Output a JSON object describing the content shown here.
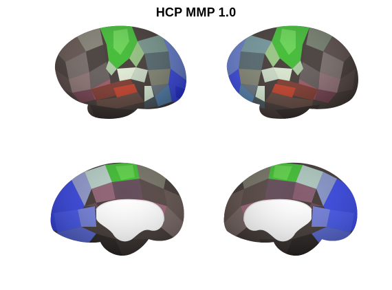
{
  "figure": {
    "title": "HCP MMP 1.0"
  },
  "views": [
    {
      "hemisphere": "left",
      "view": "lateral"
    },
    {
      "hemisphere": "right",
      "view": "lateral"
    },
    {
      "hemisphere": "left",
      "view": "medial"
    },
    {
      "hemisphere": "right",
      "view": "medial"
    }
  ],
  "colors": {
    "background": "#ffffff",
    "somatomotor_green": "#37b82a",
    "visual_blue": "#2f3fe0",
    "auditory_red": "#b8321f",
    "dark_cortex": "#3a302c",
    "mauve_cortex": "#7a4a5c",
    "pale_cortex": "#c9d9c4",
    "medial_wall": "#ffffff"
  }
}
